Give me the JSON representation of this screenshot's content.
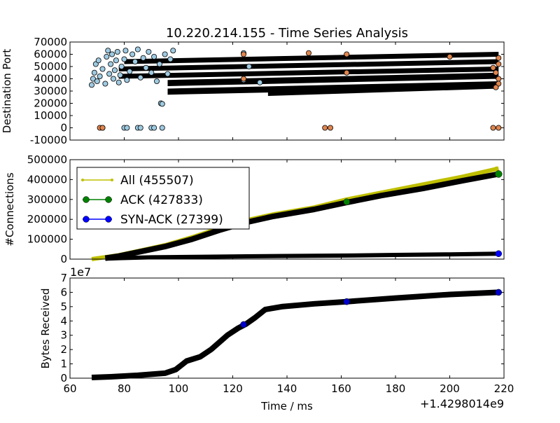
{
  "title": "10.220.214.155 - Time Series Analysis",
  "xlabel": "Time / ms",
  "x_offset_label": "+1.4298014e9",
  "colors": {
    "port_blue": "#9ecae1",
    "port_orange": "#e0854e",
    "all_line": "#bfbf00",
    "ack": "#008000",
    "synack": "#0000ff",
    "bytes": "#0000cc",
    "dark": "#000000"
  },
  "chart_data": [
    {
      "type": "scatter",
      "id": "ports",
      "ylabel": "Destination Port",
      "xlim": [
        60,
        220
      ],
      "ylim": [
        -10000,
        70000
      ],
      "x_ticks": [
        "60",
        "80",
        "100",
        "120",
        "140",
        "160",
        "180",
        "200",
        "220"
      ],
      "y_ticks": [
        "-10000",
        "0",
        "10000",
        "20000",
        "30000",
        "40000",
        "50000",
        "60000",
        "70000"
      ],
      "bands": [
        {
          "x": [
            80,
            218
          ],
          "y": [
            58000,
            62000
          ]
        },
        {
          "x": [
            78,
            218
          ],
          "y": [
            52000,
            56000
          ]
        },
        {
          "x": [
            78,
            218
          ],
          "y": [
            46000,
            50000
          ]
        },
        {
          "x": [
            96,
            218
          ],
          "y": [
            40000,
            45000
          ]
        },
        {
          "x": [
            96,
            218
          ],
          "y": [
            33000,
            38000
          ]
        },
        {
          "x": [
            133,
            218
          ],
          "y": [
            32000,
            37000
          ]
        }
      ],
      "blue_points": [
        [
          68,
          35000
        ],
        [
          68.5,
          40000
        ],
        [
          69,
          45000
        ],
        [
          69.5,
          52000
        ],
        [
          70,
          38000
        ],
        [
          70.5,
          55000
        ],
        [
          71,
          42000
        ],
        [
          72,
          48000
        ],
        [
          73,
          36000
        ],
        [
          73.5,
          58000
        ],
        [
          74,
          63000
        ],
        [
          74.5,
          44000
        ],
        [
          75,
          52000
        ],
        [
          75.5,
          60000
        ],
        [
          76,
          40000
        ],
        [
          76.5,
          47000
        ],
        [
          77,
          55000
        ],
        [
          77.5,
          62000
        ],
        [
          78,
          37000
        ],
        [
          78.5,
          43000
        ],
        [
          79,
          50000
        ],
        [
          80,
          56000
        ],
        [
          80.5,
          63000
        ],
        [
          81,
          39000
        ],
        [
          82,
          46000
        ],
        [
          83,
          60000
        ],
        [
          84,
          54000
        ],
        [
          85,
          64000
        ],
        [
          86,
          41000
        ],
        [
          87,
          57000
        ],
        [
          88,
          49000
        ],
        [
          89,
          62000
        ],
        [
          90,
          45000
        ],
        [
          91,
          58000
        ],
        [
          92,
          38000
        ],
        [
          93,
          52000
        ],
        [
          93.5,
          20000
        ],
        [
          94,
          19500
        ],
        [
          95,
          60000
        ],
        [
          96,
          44000
        ],
        [
          97,
          56000
        ],
        [
          98,
          63000
        ],
        [
          124,
          61000
        ],
        [
          124,
          39000
        ],
        [
          126,
          50000
        ],
        [
          130,
          37000
        ],
        [
          72,
          0
        ],
        [
          80,
          0
        ],
        [
          81,
          0
        ],
        [
          85,
          0
        ],
        [
          86,
          0
        ],
        [
          90,
          0
        ],
        [
          91,
          0
        ],
        [
          94,
          0
        ]
      ],
      "orange_points": [
        [
          71,
          0
        ],
        [
          72,
          0
        ],
        [
          154,
          0
        ],
        [
          156,
          0
        ],
        [
          216,
          0
        ],
        [
          218,
          0
        ],
        [
          124,
          40000
        ],
        [
          124,
          60000
        ],
        [
          148,
          61000
        ],
        [
          162,
          45000
        ],
        [
          162,
          60000
        ],
        [
          200,
          58000
        ],
        [
          216,
          49000
        ],
        [
          217,
          45000
        ],
        [
          218,
          40000
        ],
        [
          218,
          36000
        ],
        [
          218,
          52000
        ],
        [
          218,
          57000
        ],
        [
          217,
          33000
        ]
      ]
    },
    {
      "type": "line",
      "id": "connections",
      "ylabel": "#Connections",
      "xlim": [
        60,
        220
      ],
      "ylim": [
        0,
        500000
      ],
      "x_ticks": [
        "60",
        "80",
        "100",
        "120",
        "140",
        "160",
        "180",
        "200",
        "220"
      ],
      "y_ticks": [
        "0",
        "100000",
        "200000",
        "300000",
        "400000",
        "500000"
      ],
      "legend_position": "top-left",
      "series": [
        {
          "name": "All (455507)",
          "x": [
            68,
            73,
            78,
            85,
            95,
            105,
            115,
            125,
            135,
            150,
            162,
            175,
            190,
            205,
            218
          ],
          "y": [
            0,
            10000,
            20000,
            40000,
            70000,
            110000,
            155000,
            195000,
            225000,
            260000,
            300000,
            335000,
            375000,
            415000,
            455507
          ]
        },
        {
          "name": "ACK (427833)",
          "x": [
            73,
            78,
            85,
            95,
            105,
            115,
            125,
            135,
            150,
            162,
            175,
            190,
            205,
            218
          ],
          "y": [
            5000,
            15000,
            35000,
            63000,
            100000,
            145000,
            185000,
            215000,
            250000,
            285000,
            320000,
            355000,
            395000,
            427833
          ]
        },
        {
          "name": "SYN-ACK (27399)",
          "x": [
            73,
            78,
            90,
            110,
            125,
            140,
            162,
            180,
            200,
            218
          ],
          "y": [
            2000,
            5000,
            9000,
            12000,
            14000,
            16000,
            18000,
            21000,
            24000,
            27399
          ]
        }
      ]
    },
    {
      "type": "line",
      "id": "bytes",
      "ylabel": "Bytes Received",
      "exponent_label": "1e7",
      "xlim": [
        60,
        220
      ],
      "ylim": [
        0,
        7
      ],
      "x_ticks": [
        "60",
        "80",
        "100",
        "120",
        "140",
        "160",
        "180",
        "200",
        "220"
      ],
      "y_ticks": [
        "0",
        "1",
        "2",
        "3",
        "4",
        "5",
        "6",
        "7"
      ],
      "series": [
        {
          "x": [
            68,
            75,
            85,
            95,
            99,
            103,
            108,
            112,
            118,
            122,
            125,
            128,
            132,
            138,
            150,
            162,
            180,
            200,
            218
          ],
          "y": [
            0.05,
            0.1,
            0.2,
            0.35,
            0.6,
            1.2,
            1.5,
            2.0,
            3.0,
            3.5,
            3.8,
            4.2,
            4.8,
            5.0,
            5.2,
            5.35,
            5.6,
            5.85,
            6.0
          ]
        }
      ]
    }
  ]
}
